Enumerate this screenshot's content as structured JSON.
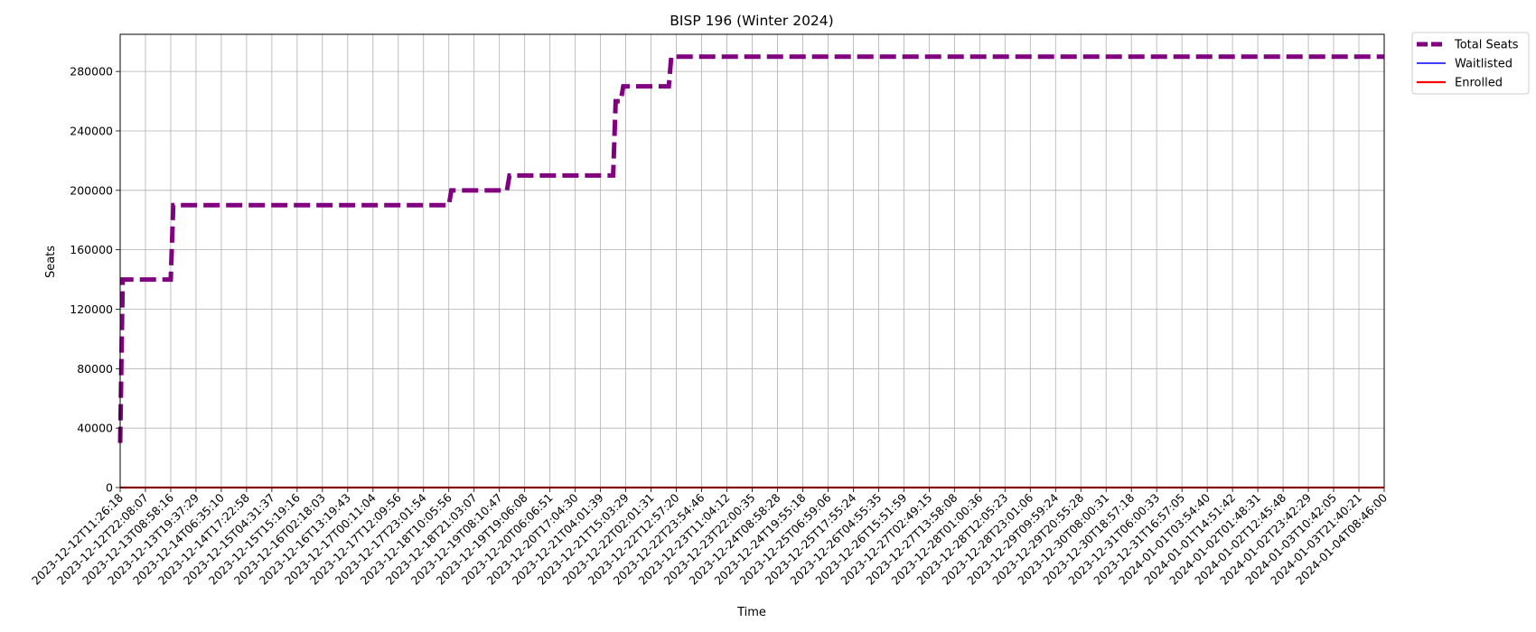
{
  "chart_data": {
    "type": "line",
    "title": "BISP 196 (Winter 2024)",
    "xlabel": "Time",
    "ylabel": "Seats",
    "ylim": [
      0,
      305000
    ],
    "yticks": [
      0,
      40000,
      80000,
      120000,
      160000,
      200000,
      240000,
      280000
    ],
    "grid": true,
    "legend_position": "outside-top-right",
    "x": [
      "2023-12-12T11:26:18",
      "2023-12-12T22:08:07",
      "2023-12-13T08:58:16",
      "2023-12-13T19:37:29",
      "2023-12-14T06:35:10",
      "2023-12-14T17:22:58",
      "2023-12-15T04:31:37",
      "2023-12-15T15:19:16",
      "2023-12-16T02:18:03",
      "2023-12-16T13:19:43",
      "2023-12-17T00:11:04",
      "2023-12-17T12:09:56",
      "2023-12-17T23:01:54",
      "2023-12-18T10:05:56",
      "2023-12-18T21:03:07",
      "2023-12-19T08:10:47",
      "2023-12-19T19:06:08",
      "2023-12-20T06:06:51",
      "2023-12-20T17:04:30",
      "2023-12-21T04:01:39",
      "2023-12-21T15:03:29",
      "2023-12-22T02:01:31",
      "2023-12-22T12:57:20",
      "2023-12-22T23:54:46",
      "2023-12-23T11:04:12",
      "2023-12-23T22:00:35",
      "2023-12-24T08:58:28",
      "2023-12-24T19:55:18",
      "2023-12-25T06:59:06",
      "2023-12-25T17:55:24",
      "2023-12-26T04:55:35",
      "2023-12-26T15:51:59",
      "2023-12-27T02:49:15",
      "2023-12-27T13:58:08",
      "2023-12-28T01:00:36",
      "2023-12-28T12:05:23",
      "2023-12-28T23:01:06",
      "2023-12-29T09:59:24",
      "2023-12-29T20:55:28",
      "2023-12-30T08:00:31",
      "2023-12-30T18:57:18",
      "2023-12-31T06:00:33",
      "2023-12-31T16:57:05",
      "2024-01-01T03:54:40",
      "2024-01-01T14:51:42",
      "2024-01-02T01:48:31",
      "2024-01-02T12:45:48",
      "2024-01-02T23:42:29",
      "2024-01-03T10:42:05",
      "2024-01-03T21:40:21",
      "2024-01-04T08:46:00"
    ],
    "series": [
      {
        "name": "Total Seats",
        "color": "#800080",
        "style": "dashed",
        "points": [
          [
            0,
            30000
          ],
          [
            0.1,
            140000
          ],
          [
            2,
            140000
          ],
          [
            2.1,
            190000
          ],
          [
            13,
            190000
          ],
          [
            13.1,
            200000
          ],
          [
            15.3,
            200000
          ],
          [
            15.4,
            210000
          ],
          [
            19.5,
            210000
          ],
          [
            19.6,
            260000
          ],
          [
            19.8,
            260000
          ],
          [
            19.9,
            270000
          ],
          [
            21.7,
            270000
          ],
          [
            21.8,
            290000
          ],
          [
            50,
            290000
          ]
        ]
      },
      {
        "name": "Waitlisted",
        "color": "#0000ff",
        "style": "solid",
        "points": [
          [
            0,
            0
          ],
          [
            50,
            0
          ]
        ]
      },
      {
        "name": "Enrolled",
        "color": "#ff0000",
        "style": "solid",
        "points": [
          [
            0,
            0
          ],
          [
            50,
            0
          ]
        ]
      }
    ]
  }
}
